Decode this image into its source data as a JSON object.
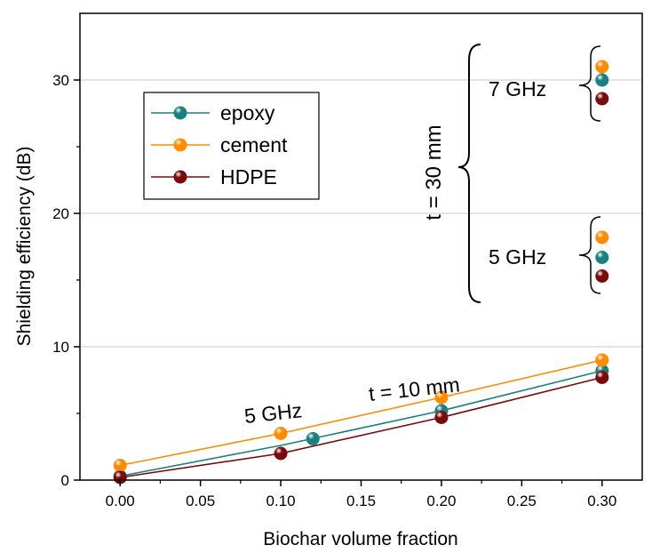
{
  "chart_data": {
    "type": "scatter",
    "xlabel": "Biochar volume fraction",
    "ylabel": "Shielding efficiency (dB)",
    "xlim": [
      -0.025,
      0.325
    ],
    "ylim": [
      0,
      35
    ],
    "xticks": [
      "0.00",
      "0.05",
      "0.10",
      "0.15",
      "0.20",
      "0.25",
      "0.30"
    ],
    "yticks": [
      "0",
      "10",
      "20",
      "30"
    ],
    "grid": "horizontal",
    "legend": "upper-left",
    "series": [
      {
        "name": "epoxy",
        "color": "#1a8080",
        "line": [
          {
            "x": 0.0,
            "y": 0.3
          },
          {
            "x": 0.1,
            "y": 2.6
          },
          {
            "x": 0.2,
            "y": 5.2
          },
          {
            "x": 0.3,
            "y": 8.2
          }
        ],
        "points": [
          {
            "x": 0.0,
            "y": 0.3
          },
          {
            "x": 0.12,
            "y": 3.1
          },
          {
            "x": 0.2,
            "y": 5.2
          },
          {
            "x": 0.3,
            "y": 8.2
          },
          {
            "x": 0.3,
            "y": 16.7
          },
          {
            "x": 0.3,
            "y": 30.0
          }
        ]
      },
      {
        "name": "cement",
        "color": "#ff8c00",
        "line": [
          {
            "x": 0.0,
            "y": 1.1
          },
          {
            "x": 0.1,
            "y": 3.5
          },
          {
            "x": 0.2,
            "y": 6.2
          },
          {
            "x": 0.3,
            "y": 9.0
          }
        ],
        "points": [
          {
            "x": 0.0,
            "y": 1.1
          },
          {
            "x": 0.1,
            "y": 3.5
          },
          {
            "x": 0.2,
            "y": 6.2
          },
          {
            "x": 0.3,
            "y": 9.0
          },
          {
            "x": 0.3,
            "y": 18.2
          },
          {
            "x": 0.3,
            "y": 31.0
          }
        ]
      },
      {
        "name": "HDPE",
        "color": "#7a0a0a",
        "line": [
          {
            "x": 0.0,
            "y": 0.2
          },
          {
            "x": 0.1,
            "y": 2.0
          },
          {
            "x": 0.2,
            "y": 4.7
          },
          {
            "x": 0.3,
            "y": 7.7
          }
        ],
        "points": [
          {
            "x": 0.0,
            "y": 0.2
          },
          {
            "x": 0.1,
            "y": 2.0
          },
          {
            "x": 0.2,
            "y": 4.7
          },
          {
            "x": 0.3,
            "y": 7.7
          },
          {
            "x": 0.3,
            "y": 15.3
          },
          {
            "x": 0.3,
            "y": 28.6
          }
        ]
      }
    ],
    "annotations": {
      "t10": "t = 10 mm",
      "f5_low": "5 GHz",
      "t30": "t = 30 mm",
      "f7": "7 GHz",
      "f5_high": "5 GHz"
    }
  }
}
